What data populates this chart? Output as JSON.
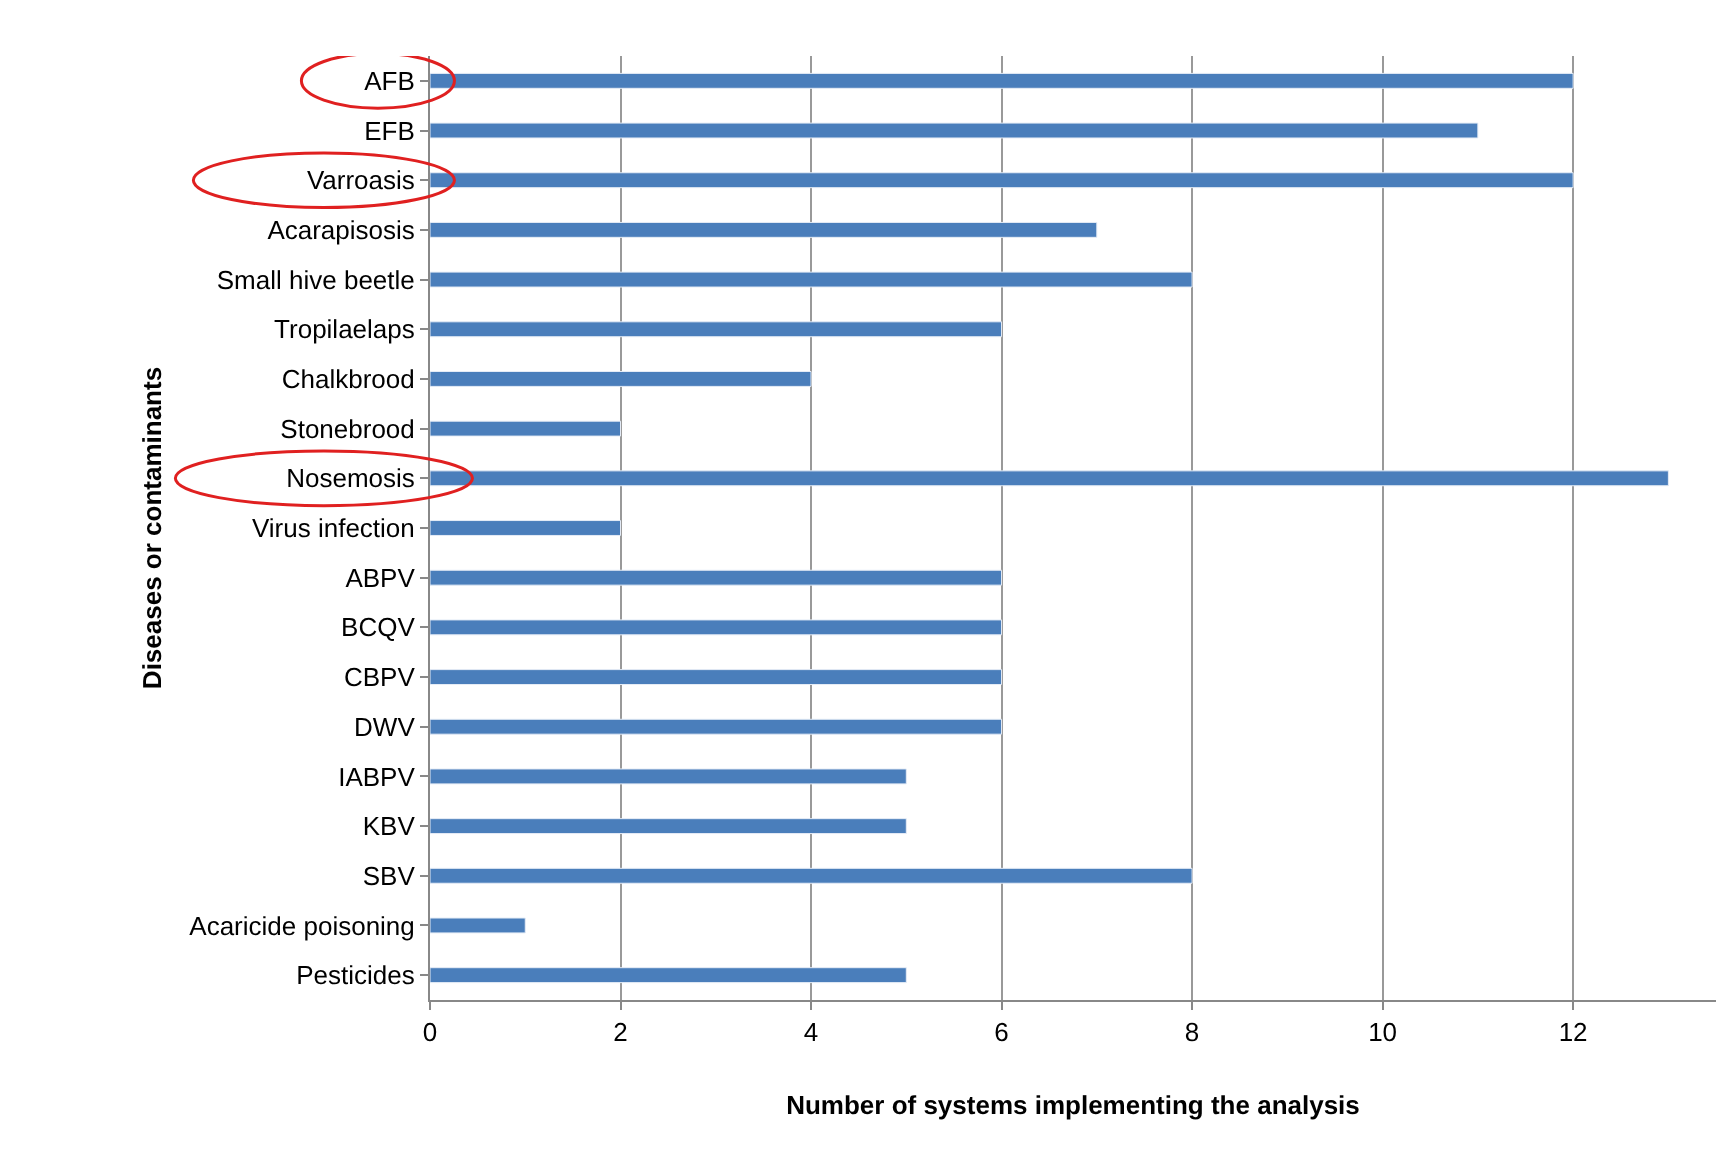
{
  "chart_data": {
    "type": "bar",
    "orientation": "horizontal",
    "xlabel": "Number of systems implementing the analysis",
    "ylabel": "Diseases or contaminants",
    "categories": [
      "AFB",
      "EFB",
      "Varroasis",
      "Acarapisosis",
      "Small hive beetle",
      "Tropilaelaps",
      "Chalkbrood",
      "Stonebrood",
      "Nosemosis",
      "Virus infection",
      "ABPV",
      "BCQV",
      "CBPV",
      "DWV",
      "IABPV",
      "KBV",
      "SBV",
      "Acaricide poisoning",
      "Pesticides"
    ],
    "values": [
      12,
      11,
      12,
      7,
      8,
      6,
      4,
      2,
      13,
      2,
      6,
      6,
      6,
      6,
      5,
      5,
      8,
      1,
      5
    ],
    "color": "#4a7ebb",
    "xlim": [
      0,
      13.5
    ],
    "xticks": [
      0,
      2,
      4,
      6,
      8,
      10,
      12
    ],
    "grid": "x"
  }
}
